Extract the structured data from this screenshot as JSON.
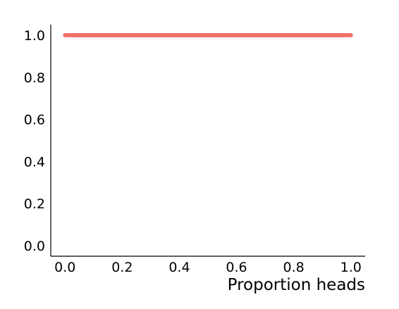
{
  "chart_data": {
    "type": "line",
    "title": "",
    "xlabel": "Proportion heads",
    "ylabel": "",
    "xlim": [
      -0.05,
      1.05
    ],
    "ylim": [
      -0.05,
      1.05
    ],
    "x_ticks": [
      "0.0",
      "0.2",
      "0.4",
      "0.6",
      "0.8",
      "1.0"
    ],
    "y_ticks": [
      "0.0",
      "0.2",
      "0.4",
      "0.6",
      "0.8",
      "1.0"
    ],
    "grid": false,
    "legend": "none",
    "series": [
      {
        "color": "#f0716a",
        "x": [
          0.0,
          0.1,
          0.2,
          0.3,
          0.4,
          0.5,
          0.6,
          0.7,
          0.8,
          0.9,
          1.0
        ],
        "y": [
          1.0,
          1.0,
          1.0,
          1.0,
          1.0,
          1.0,
          1.0,
          1.0,
          1.0,
          1.0,
          1.0
        ]
      }
    ]
  }
}
